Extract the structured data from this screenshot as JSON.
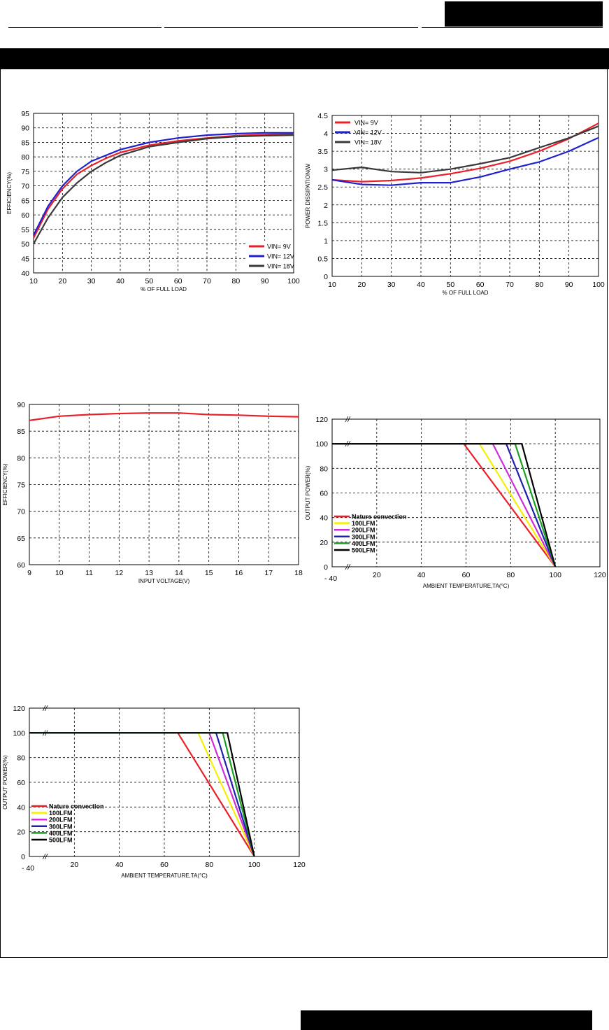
{
  "chart_data": [
    {
      "id": "eff-load",
      "type": "line",
      "xlabel": "% OF FULL LOAD",
      "ylabel": "EFFICIENCY(%)",
      "xlim": [
        10,
        100
      ],
      "ylim": [
        40,
        95
      ],
      "xticks": [
        10,
        20,
        30,
        40,
        50,
        60,
        70,
        80,
        90,
        100
      ],
      "yticks": [
        40,
        45,
        50,
        55,
        60,
        65,
        70,
        75,
        80,
        85,
        90,
        95
      ],
      "grid": true,
      "legend_position": "bottom-right",
      "series": [
        {
          "name": "VIN=  9V",
          "color": "#e8202a",
          "x": [
            10,
            15,
            20,
            25,
            30,
            35,
            40,
            50,
            60,
            70,
            80,
            90,
            100
          ],
          "y": [
            52,
            62,
            69,
            74,
            77,
            79.5,
            81.5,
            84,
            85.5,
            86.5,
            87.3,
            87.7,
            87.9
          ]
        },
        {
          "name": "VIN= 12V",
          "color": "#2020d0",
          "x": [
            10,
            15,
            20,
            25,
            30,
            35,
            40,
            50,
            60,
            70,
            80,
            90,
            100
          ],
          "y": [
            53,
            63,
            70,
            75,
            78.5,
            80.5,
            82.5,
            85,
            86.5,
            87.5,
            88,
            88.3,
            88.3
          ]
        },
        {
          "name": "VIN= 18V",
          "color": "#3a3a3a",
          "x": [
            10,
            15,
            20,
            25,
            30,
            35,
            40,
            50,
            60,
            70,
            80,
            90,
            100
          ],
          "y": [
            50,
            59,
            66,
            71,
            75,
            78,
            80.5,
            83.5,
            85,
            86.3,
            87,
            87.3,
            87.5
          ]
        }
      ]
    },
    {
      "id": "pd-load",
      "type": "line",
      "xlabel": "% OF FULL LOAD",
      "ylabel": "POWER DISSIPATION(W",
      "xlim": [
        10,
        100
      ],
      "ylim": [
        0,
        4.5
      ],
      "xticks": [
        10,
        20,
        30,
        40,
        50,
        60,
        70,
        80,
        90,
        100
      ],
      "yticks": [
        0,
        0.5,
        1,
        1.5,
        2,
        2.5,
        3,
        3.5,
        4,
        4.5
      ],
      "grid": true,
      "legend_position": "top-left",
      "series": [
        {
          "name": "VIN=  9V",
          "color": "#e8202a",
          "x": [
            10,
            20,
            30,
            40,
            50,
            60,
            70,
            80,
            90,
            100
          ],
          "y": [
            2.7,
            2.65,
            2.68,
            2.75,
            2.87,
            3.02,
            3.22,
            3.5,
            3.85,
            4.28
          ]
        },
        {
          "name": "VIN= 12V",
          "color": "#2020d0",
          "x": [
            10,
            20,
            30,
            40,
            50,
            60,
            70,
            80,
            90,
            100
          ],
          "y": [
            2.7,
            2.57,
            2.55,
            2.62,
            2.62,
            2.78,
            3.0,
            3.2,
            3.5,
            3.88
          ]
        },
        {
          "name": "VIN= 18V",
          "color": "#3a3a3a",
          "x": [
            10,
            20,
            30,
            40,
            50,
            60,
            70,
            80,
            90,
            100
          ],
          "y": [
            2.97,
            3.05,
            2.93,
            2.9,
            3.0,
            3.15,
            3.32,
            3.6,
            3.87,
            4.2
          ]
        }
      ]
    },
    {
      "id": "eff-vin",
      "type": "line",
      "xlabel": "INPUT VOLTAGE(V)",
      "ylabel": "EFFICIENCY(%)",
      "xlim": [
        9,
        18
      ],
      "ylim": [
        60,
        90
      ],
      "xticks": [
        9,
        10,
        11,
        12,
        13,
        14,
        15,
        16,
        17,
        18
      ],
      "yticks": [
        60,
        65,
        70,
        75,
        80,
        85,
        90
      ],
      "grid": true,
      "series": [
        {
          "name": "",
          "color": "#e8202a",
          "x": [
            9,
            10,
            11,
            12,
            13,
            14,
            15,
            16,
            17,
            18
          ],
          "y": [
            87,
            87.8,
            88.1,
            88.3,
            88.4,
            88.4,
            88.1,
            88,
            87.8,
            87.7
          ]
        }
      ]
    },
    {
      "id": "derate-1",
      "type": "line",
      "xlabel": "AMBIENT TEMPERATURE,TA(°C)",
      "ylabel": "OUTPUT POWER(%)",
      "xlim": [
        0,
        120
      ],
      "ylim": [
        0,
        120
      ],
      "xticks": [
        20,
        40,
        60,
        80,
        100,
        120
      ],
      "xtick_first": "- 40",
      "yticks": [
        0,
        20,
        40,
        60,
        80,
        100,
        120
      ],
      "grid": true,
      "axis_break": true,
      "legend_position": "bottom-left",
      "series": [
        {
          "name": "Nature convection",
          "color": "#e8202a",
          "x": [
            0,
            59,
            100
          ],
          "y": [
            100,
            100,
            0
          ]
        },
        {
          "name": "100LFM",
          "color": "#f5f000",
          "x": [
            0,
            66,
            100
          ],
          "y": [
            100,
            100,
            0
          ]
        },
        {
          "name": "200LFM",
          "color": "#d02cd8",
          "x": [
            0,
            72,
            100
          ],
          "y": [
            100,
            100,
            0
          ]
        },
        {
          "name": "300LFM",
          "color": "#2020b0",
          "x": [
            0,
            78,
            100
          ],
          "y": [
            100,
            100,
            0
          ]
        },
        {
          "name": "400LFM",
          "color": "#1aa020",
          "x": [
            0,
            82,
            100
          ],
          "y": [
            100,
            100,
            0
          ]
        },
        {
          "name": "500LFM",
          "color": "#000000",
          "x": [
            0,
            85,
            100
          ],
          "y": [
            100,
            100,
            0
          ]
        }
      ]
    },
    {
      "id": "derate-2",
      "type": "line",
      "xlabel": "AMBIENT TEMPERATURE,TA(°C)",
      "ylabel": "OUTPUT POWER(%)",
      "xlim": [
        0,
        120
      ],
      "ylim": [
        0,
        120
      ],
      "xticks": [
        20,
        40,
        60,
        80,
        100,
        120
      ],
      "xtick_first": "- 40",
      "yticks": [
        0,
        20,
        40,
        60,
        80,
        100,
        120
      ],
      "grid": true,
      "axis_break": true,
      "legend_position": "bottom-left",
      "series": [
        {
          "name": "Nature convection",
          "color": "#e8202a",
          "x": [
            0,
            66,
            100
          ],
          "y": [
            100,
            100,
            0
          ]
        },
        {
          "name": "100LFM",
          "color": "#f5f000",
          "x": [
            0,
            75,
            100
          ],
          "y": [
            100,
            100,
            0
          ]
        },
        {
          "name": "200LFM",
          "color": "#d02cd8",
          "x": [
            0,
            80,
            100
          ],
          "y": [
            100,
            100,
            0
          ]
        },
        {
          "name": "300LFM",
          "color": "#2020b0",
          "x": [
            0,
            83,
            100
          ],
          "y": [
            100,
            100,
            0
          ]
        },
        {
          "name": "400LFM",
          "color": "#1aa020",
          "x": [
            0,
            86,
            100
          ],
          "y": [
            100,
            100,
            0
          ]
        },
        {
          "name": "500LFM",
          "color": "#000000",
          "x": [
            0,
            88,
            100
          ],
          "y": [
            100,
            100,
            0
          ]
        }
      ]
    }
  ]
}
